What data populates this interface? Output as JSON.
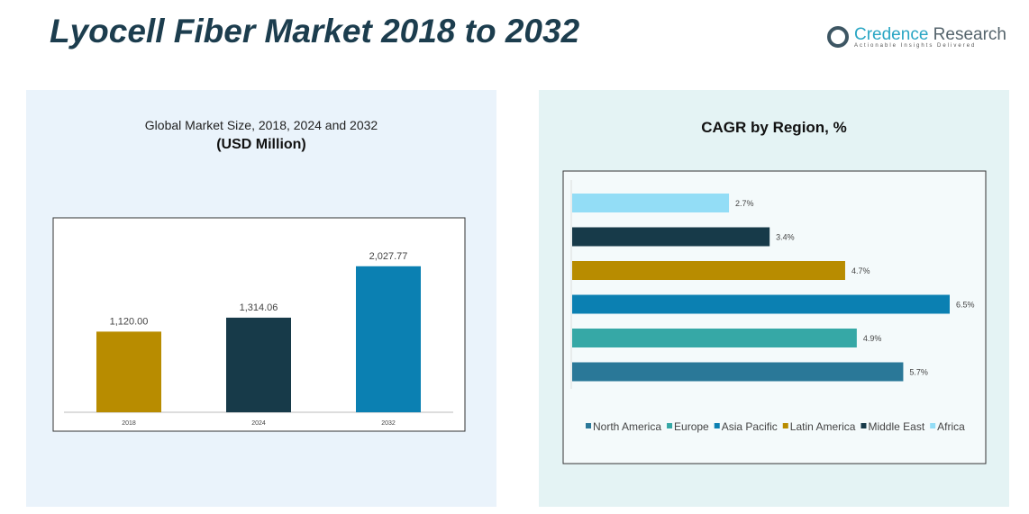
{
  "header": {
    "title": "Lyocell Fiber Market 2018 to 2032",
    "brand_name_1": "Credence",
    "brand_name_2": " Research",
    "brand_tagline": "Actionable Insights Delivered"
  },
  "chart_data": [
    {
      "type": "bar",
      "title": "Global Market Size, 2018, 2024 and 2032",
      "subtitle": "(USD Million)",
      "categories": [
        "2018",
        "2024",
        "2032"
      ],
      "values": [
        1120.0,
        1314.06,
        2027.77
      ],
      "data_labels": [
        "1,120.00",
        "1,314.06",
        "2,027.77"
      ],
      "colors": [
        "#b88c00",
        "#173a49",
        "#0b80b2"
      ],
      "ylim": [
        0,
        2300
      ],
      "grid": false
    },
    {
      "type": "bar",
      "orientation": "horizontal",
      "title": "CAGR by Region, %",
      "categories": [
        "Africa",
        "Middle East",
        "Latin America",
        "Asia Pacific",
        "Europe",
        "North America"
      ],
      "values": [
        2.7,
        3.4,
        4.7,
        6.5,
        4.9,
        5.7
      ],
      "data_labels": [
        "2.7%",
        "3.4%",
        "4.7%",
        "6.5%",
        "4.9%",
        "5.7%"
      ],
      "colors": [
        "#93ddf6",
        "#173a49",
        "#b88c00",
        "#0b80b2",
        "#36a8a6",
        "#2a7898"
      ],
      "legend": [
        "North America",
        "Europe",
        "Asia Pacific",
        "Latin America",
        "Middle East",
        "Africa"
      ],
      "legend_colors": [
        "#2a7898",
        "#36a8a6",
        "#0b80b2",
        "#b88c00",
        "#173a49",
        "#93ddf6"
      ],
      "legend_position": "bottom",
      "xlim": [
        0,
        7
      ],
      "grid": false
    }
  ]
}
